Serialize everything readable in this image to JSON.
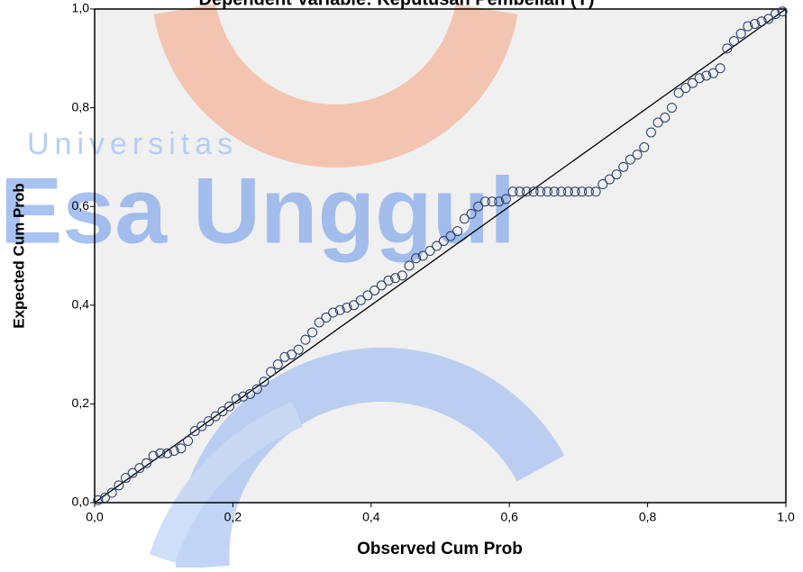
{
  "chart_data": {
    "type": "scatter",
    "title": "Dependent Variable: Keputusan Pembelian (Y)",
    "xlabel": "Observed Cum Prob",
    "ylabel": "Expected Cum Prob",
    "watermark": [
      "Universitas",
      "Esa Unggul"
    ],
    "xlim": [
      0,
      1
    ],
    "ylim": [
      0,
      1
    ],
    "xticks": [
      {
        "value": 0,
        "label": "0,0"
      },
      {
        "value": 0.2,
        "label": "0,2"
      },
      {
        "value": 0.4,
        "label": "0,4"
      },
      {
        "value": 0.6,
        "label": "0,6"
      },
      {
        "value": 0.8,
        "label": "0,8"
      },
      {
        "value": 1,
        "label": "1,0"
      }
    ],
    "yticks": [
      {
        "value": 0,
        "label": "0,0"
      },
      {
        "value": 0.2,
        "label": "0,2"
      },
      {
        "value": 0.4,
        "label": "0,4"
      },
      {
        "value": 0.6,
        "label": "0,6"
      },
      {
        "value": 0.8,
        "label": "0,8"
      },
      {
        "value": 1,
        "label": "1,0"
      }
    ],
    "reference_line": {
      "x": [
        0,
        1
      ],
      "y": [
        0,
        1
      ],
      "color": "#000000"
    },
    "color": "#243a66",
    "x": [
      0.005,
      0.015,
      0.025,
      0.035,
      0.045,
      0.055,
      0.065,
      0.075,
      0.085,
      0.095,
      0.105,
      0.115,
      0.125,
      0.135,
      0.145,
      0.155,
      0.165,
      0.175,
      0.185,
      0.195,
      0.205,
      0.215,
      0.225,
      0.235,
      0.245,
      0.255,
      0.265,
      0.275,
      0.285,
      0.295,
      0.305,
      0.315,
      0.325,
      0.335,
      0.345,
      0.355,
      0.365,
      0.375,
      0.385,
      0.395,
      0.405,
      0.415,
      0.425,
      0.435,
      0.445,
      0.455,
      0.465,
      0.475,
      0.485,
      0.495,
      0.505,
      0.515,
      0.525,
      0.535,
      0.545,
      0.555,
      0.565,
      0.575,
      0.585,
      0.595,
      0.605,
      0.615,
      0.625,
      0.635,
      0.645,
      0.655,
      0.665,
      0.675,
      0.685,
      0.695,
      0.705,
      0.715,
      0.725,
      0.735,
      0.745,
      0.755,
      0.765,
      0.775,
      0.785,
      0.795,
      0.805,
      0.815,
      0.825,
      0.835,
      0.845,
      0.855,
      0.865,
      0.875,
      0.885,
      0.895,
      0.905,
      0.915,
      0.925,
      0.935,
      0.945,
      0.955,
      0.965,
      0.975,
      0.985,
      0.995
    ],
    "y": [
      0.005,
      0.01,
      0.02,
      0.035,
      0.05,
      0.06,
      0.07,
      0.08,
      0.095,
      0.1,
      0.1,
      0.105,
      0.11,
      0.125,
      0.145,
      0.155,
      0.165,
      0.175,
      0.185,
      0.195,
      0.21,
      0.215,
      0.22,
      0.23,
      0.245,
      0.265,
      0.28,
      0.295,
      0.3,
      0.31,
      0.33,
      0.345,
      0.365,
      0.375,
      0.385,
      0.39,
      0.395,
      0.4,
      0.41,
      0.42,
      0.43,
      0.44,
      0.45,
      0.455,
      0.46,
      0.48,
      0.495,
      0.5,
      0.51,
      0.52,
      0.53,
      0.54,
      0.55,
      0.575,
      0.585,
      0.6,
      0.61,
      0.61,
      0.61,
      0.615,
      0.63,
      0.63,
      0.63,
      0.63,
      0.63,
      0.63,
      0.63,
      0.63,
      0.63,
      0.63,
      0.63,
      0.63,
      0.63,
      0.645,
      0.655,
      0.665,
      0.68,
      0.695,
      0.705,
      0.72,
      0.75,
      0.77,
      0.78,
      0.8,
      0.83,
      0.84,
      0.85,
      0.86,
      0.865,
      0.87,
      0.88,
      0.92,
      0.935,
      0.95,
      0.965,
      0.97,
      0.975,
      0.98,
      0.99,
      0.995
    ]
  }
}
